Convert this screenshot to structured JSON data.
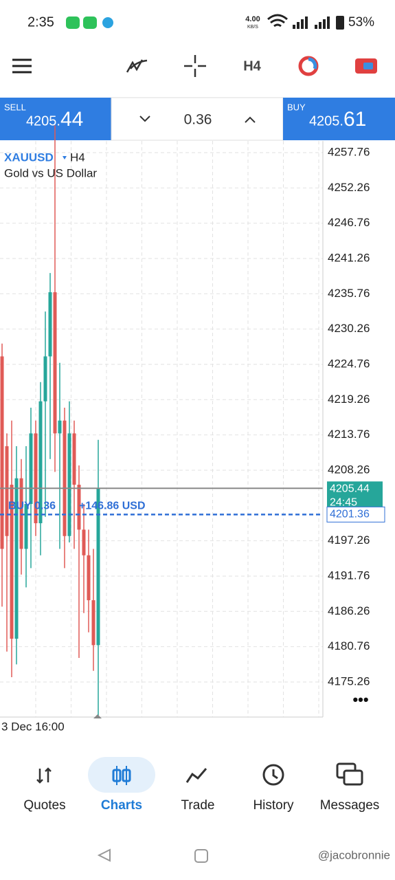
{
  "status_bar": {
    "time": "2:35",
    "net_speed": "4.00",
    "net_unit": "KB/S",
    "battery": "53%"
  },
  "toolbar": {
    "timeframe": "H4"
  },
  "trade_bar": {
    "sell_label": "SELL",
    "sell_price_prefix": "4205.",
    "sell_price_suffix": "44",
    "volume": "0.36",
    "buy_label": "BUY",
    "buy_price_prefix": "4205.",
    "buy_price_suffix": "61"
  },
  "chart": {
    "symbol": "XAUUSD",
    "timeframe": "H4",
    "description": "Gold vs US Dollar",
    "ylim": [
      4169.79,
      4259.58
    ],
    "yticks": [
      4257.76,
      4252.26,
      4246.76,
      4241.26,
      4235.76,
      4230.26,
      4224.76,
      4219.26,
      4213.76,
      4208.26,
      4197.26,
      4191.76,
      4186.26,
      4180.76,
      4175.26
    ],
    "colors": {
      "up": "#26a69a",
      "down": "#e05a56",
      "bid": "#26a69a",
      "position": "#2f6fd6"
    },
    "candles": [
      [
        4226,
        4228,
        4187,
        4196
      ],
      [
        4212,
        4214,
        4180,
        4198
      ],
      [
        4206,
        4216,
        4176,
        4182
      ],
      [
        4182,
        4212,
        4178,
        4207
      ],
      [
        4207,
        4210,
        4192,
        4196
      ],
      [
        4196,
        4212,
        4190,
        4203
      ],
      [
        4203,
        4218,
        4193,
        4214
      ],
      [
        4214,
        4216,
        4198,
        4200
      ],
      [
        4200,
        4222,
        4195,
        4219
      ],
      [
        4219,
        4233,
        4201,
        4226
      ],
      [
        4226,
        4239,
        4210,
        4236
      ],
      [
        4236,
        4262,
        4208,
        4214
      ],
      [
        4214,
        4225,
        4196,
        4216
      ],
      [
        4216,
        4218,
        4193,
        4198
      ],
      [
        4198,
        4219,
        4197,
        4214
      ],
      [
        4214,
        4216,
        4196,
        4206
      ],
      [
        4206,
        4209,
        4179,
        4199
      ],
      [
        4199,
        4203,
        4186,
        4195
      ],
      [
        4195,
        4199,
        4183,
        4188
      ],
      [
        4188,
        4196,
        4177,
        4181
      ],
      [
        4181,
        4213,
        4170,
        4205.44
      ]
    ],
    "bid": {
      "value": 4205.44,
      "countdown": "24:45"
    },
    "position": {
      "value": 4201.36,
      "label": "BUY 0.36",
      "profit": "+146.86 USD"
    },
    "time_label": "3 Dec 16:00"
  },
  "nav": [
    {
      "label": "Quotes"
    },
    {
      "label": "Charts"
    },
    {
      "label": "Trade"
    },
    {
      "label": "History"
    },
    {
      "label": "Messages"
    }
  ],
  "watermark": "@jacobronnie"
}
